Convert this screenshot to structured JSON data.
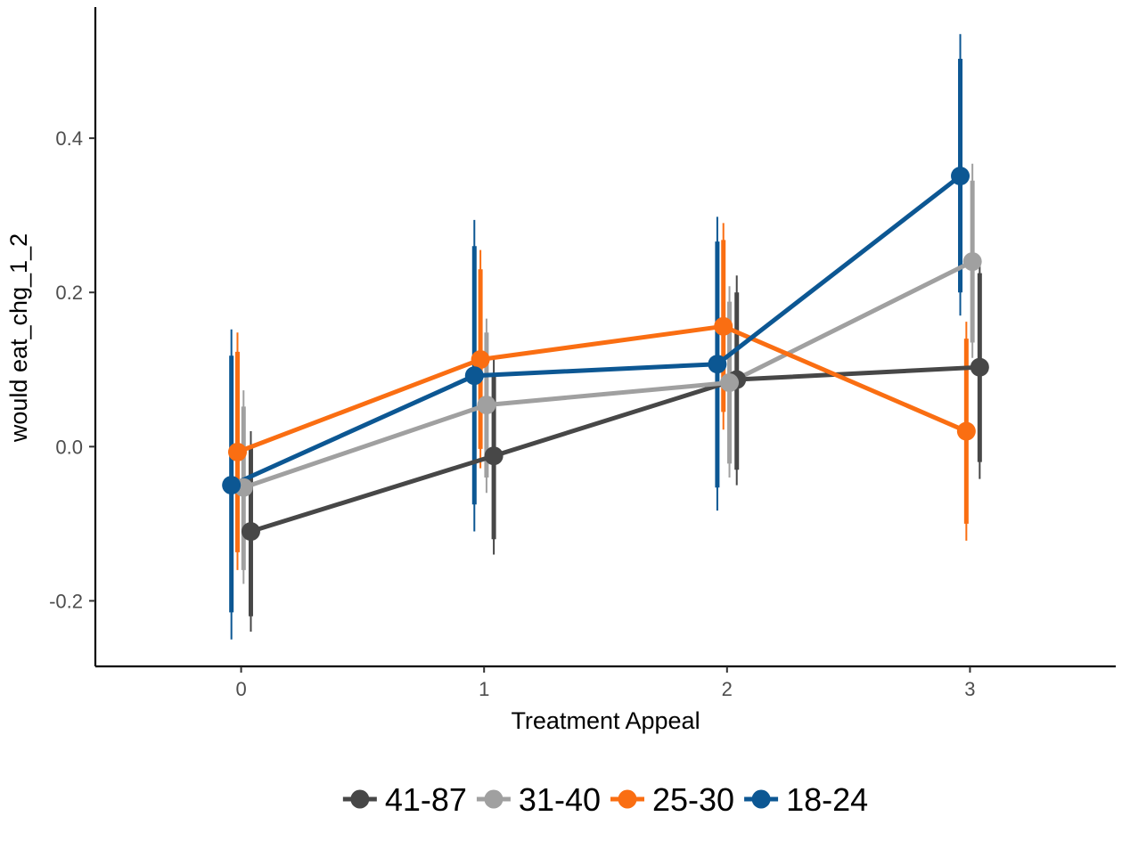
{
  "chart_data": {
    "type": "line",
    "title": "",
    "xlabel": "Treatment Appeal",
    "ylabel": "would eat_chg_1_2",
    "x_ticks": [
      "0",
      "1",
      "2",
      "3"
    ],
    "y_ticks": [
      "-0.2",
      "0.0",
      "0.2",
      "0.4"
    ],
    "y_tick_values": [
      -0.2,
      0.0,
      0.2,
      0.4
    ],
    "xlim": [
      -0.6,
      3.6
    ],
    "ylim": [
      -0.285,
      0.57
    ],
    "grid": false,
    "legend_position": "bottom",
    "x": [
      0,
      1,
      2,
      3
    ],
    "series": [
      {
        "name": "41-87",
        "color": "#474747",
        "values": [
          -0.11,
          -0.012,
          0.087,
          0.103
        ],
        "ci_inner": [
          [
            -0.22,
            0.0
          ],
          [
            -0.12,
            0.095
          ],
          [
            -0.03,
            0.2
          ],
          [
            -0.02,
            0.225
          ]
        ],
        "ci_outer": [
          [
            -0.24,
            0.02
          ],
          [
            -0.14,
            0.115
          ],
          [
            -0.05,
            0.222
          ],
          [
            -0.042,
            0.245
          ]
        ]
      },
      {
        "name": "31-40",
        "color": "#a0a0a0",
        "values": [
          -0.053,
          0.054,
          0.083,
          0.24
        ],
        "ci_inner": [
          [
            -0.16,
            0.052
          ],
          [
            -0.04,
            0.148
          ],
          [
            -0.022,
            0.188
          ],
          [
            0.135,
            0.345
          ]
        ],
        "ci_outer": [
          [
            -0.178,
            0.073
          ],
          [
            -0.06,
            0.166
          ],
          [
            -0.04,
            0.208
          ],
          [
            0.115,
            0.367
          ]
        ]
      },
      {
        "name": "25-30",
        "color": "#fa6e12",
        "values": [
          -0.007,
          0.113,
          0.156,
          0.02
        ],
        "ci_inner": [
          [
            -0.137,
            0.123
          ],
          [
            -0.003,
            0.23
          ],
          [
            0.045,
            0.268
          ],
          [
            -0.1,
            0.14
          ]
        ],
        "ci_outer": [
          [
            -0.16,
            0.148
          ],
          [
            -0.028,
            0.255
          ],
          [
            0.022,
            0.29
          ],
          [
            -0.122,
            0.162
          ]
        ]
      },
      {
        "name": "18-24",
        "color": "#0c5793",
        "values": [
          -0.05,
          0.092,
          0.107,
          0.351
        ],
        "ci_inner": [
          [
            -0.215,
            0.118
          ],
          [
            -0.075,
            0.26
          ],
          [
            -0.053,
            0.266
          ],
          [
            0.2,
            0.503
          ]
        ],
        "ci_outer": [
          [
            -0.25,
            0.152
          ],
          [
            -0.11,
            0.294
          ],
          [
            -0.083,
            0.298
          ],
          [
            0.17,
            0.535
          ]
        ]
      }
    ],
    "dodge_offsets": [
      0.04,
      0.01,
      -0.015,
      -0.04
    ]
  }
}
